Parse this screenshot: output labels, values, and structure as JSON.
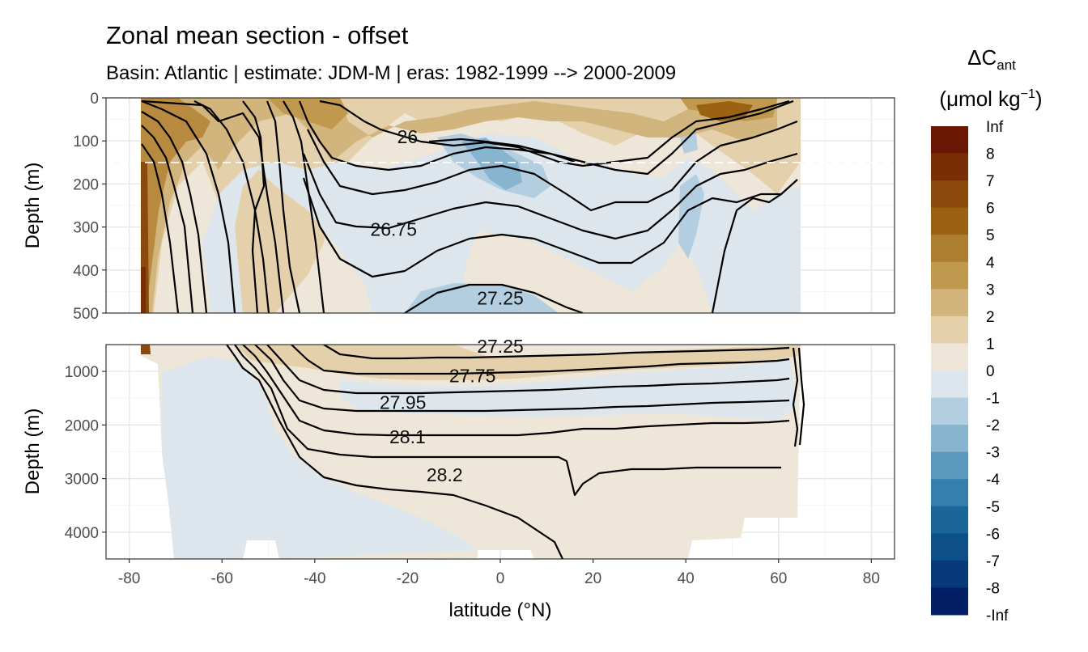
{
  "chart_data": {
    "type": "heatmap",
    "title": "Zonal mean section - offset",
    "subtitle": "Basin: Atlantic | estimate: JDM-M | eras: 1982-1999 --> 2000-2009",
    "xlabel": "latitude (°N)",
    "ylabel": "Depth (m)",
    "x_ticks": [
      "-80",
      "-60",
      "-40",
      "-20",
      "0",
      "20",
      "40",
      "60",
      "80"
    ],
    "xlim": [
      -85,
      85
    ],
    "panels": [
      {
        "name": "upper",
        "ylim": [
          0,
          500
        ],
        "y_ticks": [
          "0",
          "100",
          "200",
          "300",
          "400",
          "500"
        ],
        "y_tick_values": [
          0,
          100,
          200,
          300,
          400,
          500
        ],
        "reference_line_depth": 150
      },
      {
        "name": "lower",
        "ylim": [
          500,
          4500
        ],
        "y_ticks": [
          "1000",
          "2000",
          "3000",
          "4000"
        ],
        "y_tick_values": [
          1000,
          2000,
          3000,
          4000
        ]
      }
    ],
    "contour_labels": [
      {
        "panel": "upper",
        "text": "26",
        "lat": -20,
        "depth": 90
      },
      {
        "panel": "upper",
        "text": "26.75",
        "lat": -23,
        "depth": 305
      },
      {
        "panel": "upper",
        "text": "27.25",
        "lat": 0,
        "depth": 465
      },
      {
        "panel": "lower",
        "text": "27.25",
        "lat": 0,
        "depth": 530
      },
      {
        "panel": "lower",
        "text": "27.75",
        "lat": -6,
        "depth": 1080
      },
      {
        "panel": "lower",
        "text": "27.95",
        "lat": -21,
        "depth": 1580
      },
      {
        "panel": "lower",
        "text": "28.1",
        "lat": -20,
        "depth": 2220
      },
      {
        "panel": "lower",
        "text": "28.2",
        "lat": -12,
        "depth": 2930
      }
    ],
    "legend": {
      "title": "ΔC",
      "title_sub": "ant",
      "unit": "(μmol kg",
      "unit_sup": "−1",
      "unit_end": ")",
      "placement": "right",
      "labels": [
        "Inf",
        "8",
        "7",
        "6",
        "5",
        "4",
        "3",
        "2",
        "1",
        "0",
        "-1",
        "-2",
        "-3",
        "-4",
        "-5",
        "-6",
        "-7",
        "-8",
        "-Inf"
      ],
      "colors": [
        "#6b1503",
        "#7a2e05",
        "#8b4a0c",
        "#9b6214",
        "#ad7e2f",
        "#c0994f",
        "#d2b47d",
        "#e4d1ab",
        "#eee6d8",
        "#dce6ec",
        "#b2cee0",
        "#87b4cf",
        "#5b98bd",
        "#347fab",
        "#1a6699",
        "#0d4f88",
        "#08397a",
        "#041f66"
      ]
    }
  }
}
